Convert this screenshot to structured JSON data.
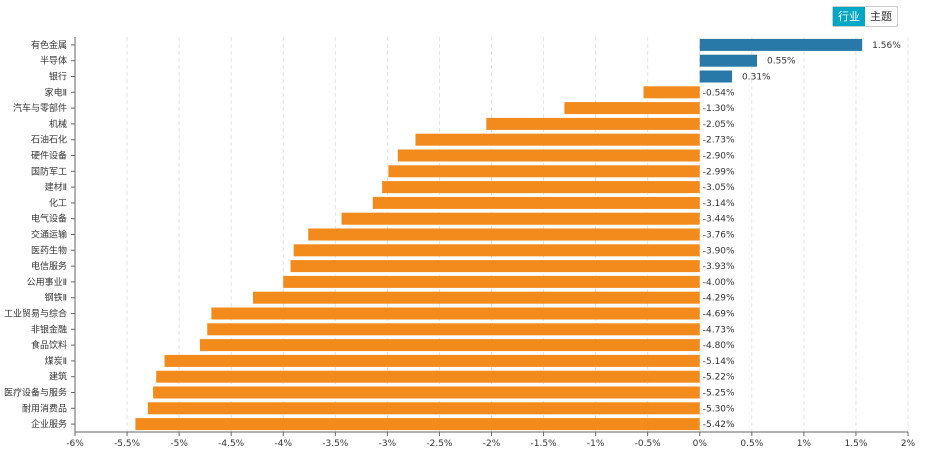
{
  "tabs": [
    {
      "label": "行业",
      "active": true
    },
    {
      "label": "主题",
      "active": false
    }
  ],
  "colors": {
    "positive": "#2878a8",
    "negative": "#f28a1c",
    "tab_active": "#00a8c6"
  },
  "chart_data": {
    "type": "bar",
    "orientation": "horizontal",
    "categories": [
      "有色金属",
      "半导体",
      "银行",
      "家电Ⅱ",
      "汽车与零部件",
      "机械",
      "石油石化",
      "硬件设备",
      "国防军工",
      "建材Ⅱ",
      "化工",
      "电气设备",
      "交通运输",
      "医药生物",
      "电信服务",
      "公用事业Ⅱ",
      "钢铁Ⅱ",
      "工业贸易与综合",
      "非银金融",
      "食品饮料",
      "煤炭Ⅱ",
      "建筑",
      "医疗设备与服务",
      "耐用消费品",
      "企业服务"
    ],
    "values": [
      1.56,
      0.55,
      0.31,
      -0.54,
      -1.3,
      -2.05,
      -2.73,
      -2.9,
      -2.99,
      -3.05,
      -3.14,
      -3.44,
      -3.76,
      -3.9,
      -3.93,
      -4.0,
      -4.29,
      -4.69,
      -4.73,
      -4.8,
      -5.14,
      -5.22,
      -5.25,
      -5.3,
      -5.42
    ],
    "data_labels": [
      "1.56%",
      "0.55%",
      "0.31%",
      "-0.54%",
      "-1.30%",
      "-2.05%",
      "-2.73%",
      "-2.90%",
      "-2.99%",
      "-3.05%",
      "-3.14%",
      "-3.44%",
      "-3.76%",
      "-3.90%",
      "-3.93%",
      "-4.00%",
      "-4.29%",
      "-4.69%",
      "-4.73%",
      "-4.80%",
      "-5.14%",
      "-5.22%",
      "-5.25%",
      "-5.30%",
      "-5.42%"
    ],
    "xlim": [
      -6,
      2
    ],
    "xticks": [
      -6,
      -5.5,
      -5,
      -4.5,
      -4,
      -3.5,
      -3,
      -2.5,
      -2,
      -1.5,
      -1,
      -0.5,
      0,
      0.5,
      1,
      1.5,
      2
    ],
    "xtick_labels": [
      "-6%",
      "-5.5%",
      "-5%",
      "-4.5%",
      "-4%",
      "-3.5%",
      "-3%",
      "-2.5%",
      "-2%",
      "-1.5%",
      "-1%",
      "-0.5%",
      "0%",
      "0.5%",
      "1%",
      "1.5%",
      "2%"
    ],
    "grid": true,
    "title": "",
    "xlabel": "",
    "ylabel": ""
  }
}
